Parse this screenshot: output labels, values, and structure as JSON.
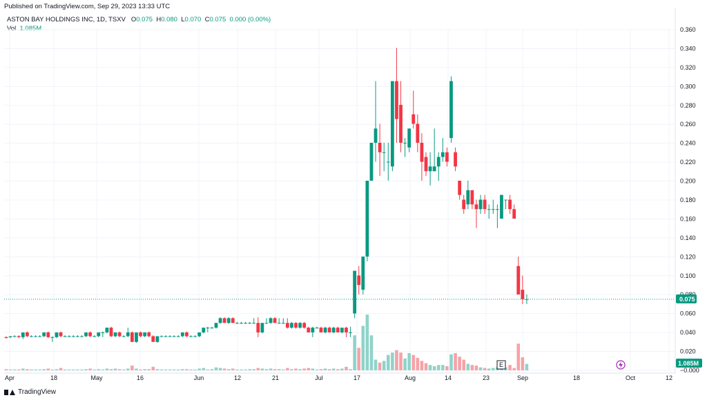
{
  "published": "Published on TradingView.com, Sep 29, 2023 13:33 UTC",
  "legend": {
    "symbol": "ASTON BAY HOLDINGS INC, 1D, TSXV",
    "o_label": "O",
    "o": "0.075",
    "h_label": "H",
    "h": "0.080",
    "l_label": "L",
    "l": "0.070",
    "c_label": "C",
    "c": "0.075",
    "change": "0.000 (0.00%)",
    "vol_label": "Vol",
    "vol": "1.085M"
  },
  "footer": {
    "brand": "TradingView"
  },
  "colors": {
    "up": "#089981",
    "down": "#f23645",
    "vol_up": "#8fd3c9",
    "vol_down": "#f5a3a8",
    "grid": "#f0f3fa"
  },
  "chart_data": {
    "type": "candlestick",
    "ylim": [
      0.0,
      0.36
    ],
    "y_ticks": [
      "0.360",
      "0.340",
      "0.320",
      "0.300",
      "0.280",
      "0.260",
      "0.240",
      "0.220",
      "0.200",
      "0.180",
      "0.160",
      "0.140",
      "0.120",
      "0.100",
      "0.080",
      "0.060",
      "0.040",
      "0.020",
      "−0.000"
    ],
    "x_ticks": [
      "Apr",
      "18",
      "May",
      "16",
      "Jun",
      "12",
      "21",
      "Jul",
      "17",
      "Aug",
      "14",
      "23",
      "Sep",
      "18",
      "Oct",
      "12"
    ],
    "last_price": "0.075",
    "last_volume": "1.085M",
    "earnings_marker": "E",
    "candles": [
      [
        0.035,
        0.036,
        0.034,
        0.034,
        0.2
      ],
      [
        0.035,
        0.036,
        0.034,
        0.036,
        0.1
      ],
      [
        0.036,
        0.037,
        0.035,
        0.036,
        0.1
      ],
      [
        0.036,
        0.037,
        0.034,
        0.035,
        0.1
      ],
      [
        0.035,
        0.04,
        0.033,
        0.04,
        0.3
      ],
      [
        0.04,
        0.041,
        0.035,
        0.036,
        0.2
      ],
      [
        0.036,
        0.037,
        0.035,
        0.036,
        0.1
      ],
      [
        0.036,
        0.037,
        0.035,
        0.036,
        0.1
      ],
      [
        0.036,
        0.037,
        0.035,
        0.036,
        0.1
      ],
      [
        0.036,
        0.04,
        0.035,
        0.04,
        0.2
      ],
      [
        0.04,
        0.041,
        0.034,
        0.035,
        0.3
      ],
      [
        0.035,
        0.036,
        0.03,
        0.035,
        0.1
      ],
      [
        0.035,
        0.04,
        0.034,
        0.04,
        0.2
      ],
      [
        0.04,
        0.041,
        0.035,
        0.036,
        0.4
      ],
      [
        0.036,
        0.037,
        0.035,
        0.036,
        0.1
      ],
      [
        0.036,
        0.037,
        0.035,
        0.036,
        0.1
      ],
      [
        0.036,
        0.037,
        0.035,
        0.036,
        0.1
      ],
      [
        0.036,
        0.037,
        0.035,
        0.036,
        0.1
      ],
      [
        0.036,
        0.037,
        0.035,
        0.036,
        0.1
      ],
      [
        0.036,
        0.04,
        0.035,
        0.04,
        0.2
      ],
      [
        0.04,
        0.041,
        0.035,
        0.036,
        0.3
      ],
      [
        0.036,
        0.037,
        0.035,
        0.036,
        0.1
      ],
      [
        0.036,
        0.04,
        0.035,
        0.04,
        0.2
      ],
      [
        0.04,
        0.041,
        0.035,
        0.04,
        0.1
      ],
      [
        0.04,
        0.045,
        0.039,
        0.045,
        0.3
      ],
      [
        0.045,
        0.046,
        0.035,
        0.036,
        0.2
      ],
      [
        0.036,
        0.04,
        0.035,
        0.04,
        0.3
      ],
      [
        0.04,
        0.041,
        0.035,
        0.036,
        0.2
      ],
      [
        0.036,
        0.037,
        0.035,
        0.036,
        0.1
      ],
      [
        0.036,
        0.045,
        0.035,
        0.04,
        0.3
      ],
      [
        0.04,
        0.041,
        0.03,
        0.03,
        0.8
      ],
      [
        0.03,
        0.04,
        0.029,
        0.04,
        0.3
      ],
      [
        0.04,
        0.041,
        0.035,
        0.036,
        0.1
      ],
      [
        0.036,
        0.04,
        0.035,
        0.04,
        0.2
      ],
      [
        0.04,
        0.041,
        0.035,
        0.036,
        0.2
      ],
      [
        0.036,
        0.037,
        0.03,
        0.03,
        0.6
      ],
      [
        0.03,
        0.036,
        0.029,
        0.036,
        0.2
      ],
      [
        0.036,
        0.037,
        0.035,
        0.036,
        0.1
      ],
      [
        0.036,
        0.037,
        0.035,
        0.036,
        0.1
      ],
      [
        0.036,
        0.037,
        0.035,
        0.036,
        0.1
      ],
      [
        0.036,
        0.037,
        0.035,
        0.036,
        0.1
      ],
      [
        0.036,
        0.037,
        0.035,
        0.036,
        0.1
      ],
      [
        0.036,
        0.04,
        0.035,
        0.04,
        0.2
      ],
      [
        0.04,
        0.041,
        0.035,
        0.036,
        0.2
      ],
      [
        0.036,
        0.037,
        0.035,
        0.036,
        0.1
      ],
      [
        0.036,
        0.037,
        0.035,
        0.036,
        0.1
      ],
      [
        0.036,
        0.04,
        0.035,
        0.04,
        0.3
      ],
      [
        0.04,
        0.045,
        0.039,
        0.045,
        0.4
      ],
      [
        0.045,
        0.046,
        0.04,
        0.045,
        0.1
      ],
      [
        0.045,
        0.046,
        0.044,
        0.045,
        0.2
      ],
      [
        0.045,
        0.05,
        0.044,
        0.05,
        0.5
      ],
      [
        0.05,
        0.056,
        0.049,
        0.055,
        0.4
      ],
      [
        0.055,
        0.056,
        0.05,
        0.05,
        0.3
      ],
      [
        0.05,
        0.056,
        0.049,
        0.055,
        0.2
      ],
      [
        0.055,
        0.056,
        0.05,
        0.05,
        0.3
      ],
      [
        0.05,
        0.051,
        0.049,
        0.05,
        0.1
      ],
      [
        0.05,
        0.051,
        0.049,
        0.05,
        0.1
      ],
      [
        0.05,
        0.051,
        0.049,
        0.05,
        0.1
      ],
      [
        0.05,
        0.051,
        0.049,
        0.05,
        0.2
      ],
      [
        0.05,
        0.055,
        0.049,
        0.05,
        0.2
      ],
      [
        0.05,
        0.056,
        0.035,
        0.04,
        0.4
      ],
      [
        0.04,
        0.05,
        0.039,
        0.05,
        0.3
      ],
      [
        0.05,
        0.055,
        0.049,
        0.05,
        0.2
      ],
      [
        0.05,
        0.056,
        0.049,
        0.055,
        0.3
      ],
      [
        0.055,
        0.056,
        0.05,
        0.05,
        0.2
      ],
      [
        0.05,
        0.055,
        0.049,
        0.05,
        0.2
      ],
      [
        0.05,
        0.055,
        0.049,
        0.05,
        0.1
      ],
      [
        0.05,
        0.055,
        0.044,
        0.045,
        0.4
      ],
      [
        0.045,
        0.051,
        0.044,
        0.05,
        0.2
      ],
      [
        0.05,
        0.051,
        0.044,
        0.045,
        0.3
      ],
      [
        0.045,
        0.051,
        0.044,
        0.05,
        0.2
      ],
      [
        0.05,
        0.051,
        0.044,
        0.045,
        0.3
      ],
      [
        0.045,
        0.046,
        0.04,
        0.04,
        0.4
      ],
      [
        0.04,
        0.046,
        0.035,
        0.045,
        0.3
      ],
      [
        0.045,
        0.046,
        0.044,
        0.045,
        0.1
      ],
      [
        0.045,
        0.046,
        0.04,
        0.04,
        0.2
      ],
      [
        0.04,
        0.046,
        0.039,
        0.045,
        0.3
      ],
      [
        0.045,
        0.046,
        0.04,
        0.04,
        0.2
      ],
      [
        0.04,
        0.046,
        0.039,
        0.045,
        0.3
      ],
      [
        0.045,
        0.046,
        0.04,
        0.04,
        0.2
      ],
      [
        0.04,
        0.045,
        0.039,
        0.045,
        0.3
      ],
      [
        0.045,
        0.046,
        0.035,
        0.04,
        0.6
      ],
      [
        0.04,
        0.046,
        0.035,
        0.04,
        0.2
      ],
      [
        0.06,
        0.105,
        0.055,
        0.105,
        5.9
      ],
      [
        0.1,
        0.11,
        0.08,
        0.09,
        3.8
      ],
      [
        0.085,
        0.12,
        0.08,
        0.12,
        7.5
      ],
      [
        0.12,
        0.2,
        0.115,
        0.2,
        9.4
      ],
      [
        0.2,
        0.24,
        0.2,
        0.24,
        5.9
      ],
      [
        0.24,
        0.305,
        0.22,
        0.255,
        1.8
      ],
      [
        0.24,
        0.26,
        0.205,
        0.23,
        1.3
      ],
      [
        0.23,
        0.24,
        0.21,
        0.23,
        1.6
      ],
      [
        0.22,
        0.24,
        0.2,
        0.22,
        2.6
      ],
      [
        0.215,
        0.305,
        0.21,
        0.305,
        3.0
      ],
      [
        0.305,
        0.34,
        0.24,
        0.265,
        3.4
      ],
      [
        0.28,
        0.305,
        0.23,
        0.24,
        3.0
      ],
      [
        0.24,
        0.245,
        0.225,
        0.24,
        2.0
      ],
      [
        0.235,
        0.255,
        0.23,
        0.255,
        2.9
      ],
      [
        0.27,
        0.295,
        0.255,
        0.26,
        2.6
      ],
      [
        0.26,
        0.27,
        0.23,
        0.24,
        2.1
      ],
      [
        0.24,
        0.25,
        0.2,
        0.22,
        1.6
      ],
      [
        0.225,
        0.23,
        0.205,
        0.21,
        1.2
      ],
      [
        0.21,
        0.23,
        0.195,
        0.215,
        0.9
      ],
      [
        0.21,
        0.255,
        0.21,
        0.215,
        0.7
      ],
      [
        0.215,
        0.23,
        0.2,
        0.225,
        0.9
      ],
      [
        0.225,
        0.245,
        0.22,
        0.23,
        0.9
      ],
      [
        0.23,
        0.235,
        0.215,
        0.22,
        0.7
      ],
      [
        0.245,
        0.31,
        0.24,
        0.305,
        2.7
      ],
      [
        0.23,
        0.235,
        0.21,
        0.215,
        2.9
      ],
      [
        0.2,
        0.2,
        0.18,
        0.185,
        2.3
      ],
      [
        0.18,
        0.185,
        0.165,
        0.17,
        1.8
      ],
      [
        0.175,
        0.2,
        0.17,
        0.19,
        1.1
      ],
      [
        0.19,
        0.19,
        0.17,
        0.175,
        0.9
      ],
      [
        0.175,
        0.18,
        0.15,
        0.17,
        0.8
      ],
      [
        0.17,
        0.185,
        0.165,
        0.18,
        0.5
      ],
      [
        0.18,
        0.185,
        0.165,
        0.17,
        0.4
      ],
      [
        0.17,
        0.175,
        0.16,
        0.17,
        0.3
      ],
      [
        0.17,
        0.18,
        0.165,
        0.17,
        0.4
      ],
      [
        0.17,
        0.175,
        0.15,
        0.17,
        0.5
      ],
      [
        0.16,
        0.185,
        0.16,
        0.185,
        0.7
      ],
      [
        0.18,
        0.18,
        0.17,
        0.18,
        0.5
      ],
      [
        0.18,
        0.185,
        0.165,
        0.17,
        0.9
      ],
      [
        0.17,
        0.175,
        0.16,
        0.16,
        0.4
      ],
      [
        0.11,
        0.12,
        0.08,
        0.08,
        4.5
      ],
      [
        0.085,
        0.1,
        0.07,
        0.075,
        2.2
      ],
      [
        0.075,
        0.08,
        0.07,
        0.075,
        1.085
      ]
    ]
  }
}
